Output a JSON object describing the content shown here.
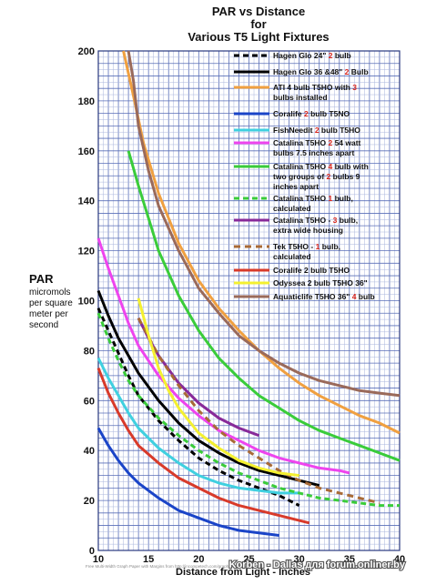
{
  "chart_data": {
    "type": "line",
    "title_lines": [
      "PAR vs Distance",
      "for",
      "Various T5 Light Fixtures"
    ],
    "ylabel": "PAR",
    "ylabel_sub": [
      "micromols",
      "per square",
      "meter per",
      "second"
    ],
    "xlabel": "Distance from Light - Inches",
    "xlim": [
      10,
      40
    ],
    "ylim": [
      0,
      200
    ],
    "x_ticks": [
      10,
      15,
      20,
      25,
      30,
      35,
      40
    ],
    "y_ticks": [
      0,
      20,
      40,
      60,
      80,
      100,
      120,
      140,
      160,
      180,
      200
    ],
    "grid": true,
    "legend_position": "top-right",
    "series": [
      {
        "name_parts": [
          [
            "Hagen Glo 24\" ",
            0
          ],
          [
            "2",
            1
          ],
          [
            " bulb",
            0
          ]
        ],
        "color": "#000000",
        "dash": "6,4",
        "x": [
          10,
          11,
          12,
          13,
          14,
          16,
          18,
          20,
          22,
          24,
          26,
          28,
          30
        ],
        "y": [
          97,
          88,
          79,
          70,
          62,
          52,
          44,
          37,
          32,
          28,
          25,
          22,
          18
        ]
      },
      {
        "name_parts": [
          [
            "Hagen Glo 36 &48\" ",
            0
          ],
          [
            "2",
            1
          ],
          [
            " Bulb",
            0
          ]
        ],
        "color": "#000000",
        "dash": "",
        "x": [
          10,
          11,
          12,
          13,
          14,
          16,
          18,
          20,
          22,
          24,
          26,
          28,
          30,
          32
        ],
        "y": [
          104,
          94,
          85,
          78,
          71,
          60,
          51,
          44,
          39,
          35,
          32,
          30,
          28,
          26
        ]
      },
      {
        "name_parts": [
          [
            "ATI 4 bulb T5HO with ",
            0
          ],
          [
            "3",
            1
          ]
        ],
        "name2_parts": [
          [
            "bulbs installed",
            0
          ]
        ],
        "color": "#f0a040",
        "dash": "",
        "x": [
          12.5,
          13.5,
          14.5,
          16,
          18,
          20,
          22,
          24,
          26,
          28,
          30,
          32,
          34,
          36,
          38,
          40
        ],
        "y": [
          200,
          182,
          163,
          143,
          123,
          108,
          97,
          88,
          80,
          73,
          67,
          62,
          58,
          54,
          51,
          47
        ]
      },
      {
        "name_parts": [
          [
            "Coralife ",
            0
          ],
          [
            "2",
            1
          ],
          [
            " bulb T5NO",
            0
          ]
        ],
        "color": "#1a44c8",
        "dash": "",
        "x": [
          10,
          11,
          12,
          13,
          14,
          16,
          18,
          20,
          22,
          24,
          26,
          28
        ],
        "y": [
          49,
          42,
          36,
          31,
          27,
          21,
          16,
          13,
          10,
          8,
          7,
          6
        ]
      },
      {
        "name_parts": [
          [
            "FishNeedit  ",
            0
          ],
          [
            "2",
            1
          ],
          [
            " bulb T5HO",
            0
          ]
        ],
        "color": "#40d0e0",
        "dash": "",
        "x": [
          10,
          11,
          12,
          13,
          14,
          16,
          18,
          20,
          22,
          24,
          26,
          28,
          30
        ],
        "y": [
          77,
          69,
          62,
          55,
          49,
          41,
          35,
          30,
          27,
          25,
          24,
          23,
          23
        ]
      },
      {
        "name_parts": [
          [
            "Catalina T5HO ",
            0
          ],
          [
            "2",
            1
          ],
          [
            " 54 watt",
            0
          ]
        ],
        "name2_parts": [
          [
            "bulbs 7.5 inches apart",
            0
          ]
        ],
        "color": "#ee44ee",
        "dash": "",
        "x": [
          10,
          11,
          12,
          13,
          14,
          16,
          18,
          20,
          22,
          24,
          26,
          28,
          30,
          32,
          34,
          35
        ],
        "y": [
          125,
          113,
          102,
          91,
          82,
          70,
          61,
          54,
          48,
          44,
          40,
          37,
          35,
          33,
          32,
          31
        ]
      },
      {
        "name_parts": [
          [
            "Catalina T5HO ",
            0
          ],
          [
            "4",
            1
          ],
          [
            " bulb with",
            0
          ]
        ],
        "name2_parts": [
          [
            "two groups of ",
            0
          ],
          [
            "2",
            1
          ],
          [
            " bulbs 9",
            0
          ]
        ],
        "name3_parts": [
          [
            "inches apart",
            0
          ]
        ],
        "color": "#3acc3a",
        "dash": "",
        "x": [
          13,
          14,
          15,
          16,
          18,
          20,
          22,
          24,
          26,
          28,
          30,
          32,
          34,
          36,
          38,
          40
        ],
        "y": [
          160,
          146,
          133,
          120,
          102,
          88,
          77,
          69,
          62,
          57,
          52,
          48,
          45,
          42,
          39,
          36
        ]
      },
      {
        "name_parts": [
          [
            "Catalina T5HO ",
            0
          ],
          [
            "1",
            1
          ],
          [
            " bulb,",
            0
          ]
        ],
        "name2_parts": [
          [
            "calculated",
            0
          ]
        ],
        "color": "#3acc3a",
        "dash": "6,4",
        "x": [
          10,
          11,
          12,
          13,
          14,
          16,
          18,
          20,
          22,
          24,
          26,
          28,
          30,
          32,
          34,
          36,
          38,
          40
        ],
        "y": [
          95,
          85,
          76,
          68,
          62,
          53,
          46,
          40,
          35,
          31,
          28,
          25,
          23,
          21,
          20,
          19,
          18,
          18
        ]
      },
      {
        "name_parts": [
          [
            "Catalina T5HO - ",
            0
          ],
          [
            "3",
            1
          ],
          [
            " bulb,",
            0
          ]
        ],
        "name2_parts": [
          [
            "extra wide housing",
            0
          ]
        ],
        "color": "#882a99",
        "dash": "",
        "x": [
          14,
          15,
          16,
          18,
          20,
          22,
          24,
          26
        ],
        "y": [
          93,
          85,
          78,
          67,
          59,
          53,
          49,
          46
        ]
      },
      {
        "name_parts": [
          [
            "Tek T5HO - ",
            0
          ],
          [
            "1",
            1
          ],
          [
            " bulb,",
            0
          ]
        ],
        "name2_parts": [
          [
            "calculated",
            0
          ]
        ],
        "color": "#a86a36",
        "dash": "7,5",
        "x": [
          14,
          16,
          18,
          20,
          22,
          24,
          26,
          28,
          30,
          32,
          34,
          36,
          38
        ],
        "y": [
          93,
          78,
          66,
          56,
          48,
          42,
          37,
          32,
          28,
          25,
          23,
          21,
          19
        ]
      },
      {
        "name_parts": [
          [
            "Coralife 2 bulb T5HO",
            0
          ]
        ],
        "color": "#d83a2a",
        "dash": "",
        "x": [
          10,
          11,
          12,
          13,
          14,
          16,
          18,
          20,
          22,
          24,
          26,
          28,
          30,
          31
        ],
        "y": [
          73,
          63,
          55,
          48,
          42,
          35,
          29,
          25,
          21,
          18,
          16,
          14,
          12,
          11
        ]
      },
      {
        "name_parts": [
          [
            "Odyssea 2 bulb T5HO 36\"",
            0
          ]
        ],
        "color": "#f4f030",
        "dash": "",
        "x": [
          14,
          15,
          16,
          17,
          18,
          20,
          22,
          24,
          26,
          28,
          30
        ],
        "y": [
          101,
          86,
          73,
          64,
          57,
          47,
          41,
          36,
          33,
          31,
          30
        ]
      },
      {
        "name_parts": [
          [
            "Aquaticlife T5HO 36\" ",
            0
          ],
          [
            "4",
            1
          ],
          [
            " bulb",
            0
          ]
        ],
        "color": "#9a6a5a",
        "dash": "",
        "x": [
          13,
          13.5,
          14,
          15,
          16,
          18,
          20,
          22,
          24,
          26,
          28,
          30,
          32,
          34,
          36,
          38,
          40
        ],
        "y": [
          200,
          188,
          170,
          152,
          138,
          120,
          105,
          95,
          86,
          80,
          75,
          71,
          68,
          66,
          64,
          63,
          62
        ]
      }
    ]
  },
  "footer_credit": "Free Multi-Width Graph Paper with Margins from http://incompetech.com/graphpaper/multiwidth/",
  "watermark": "Korben - Dallas для forum.onliner.by"
}
